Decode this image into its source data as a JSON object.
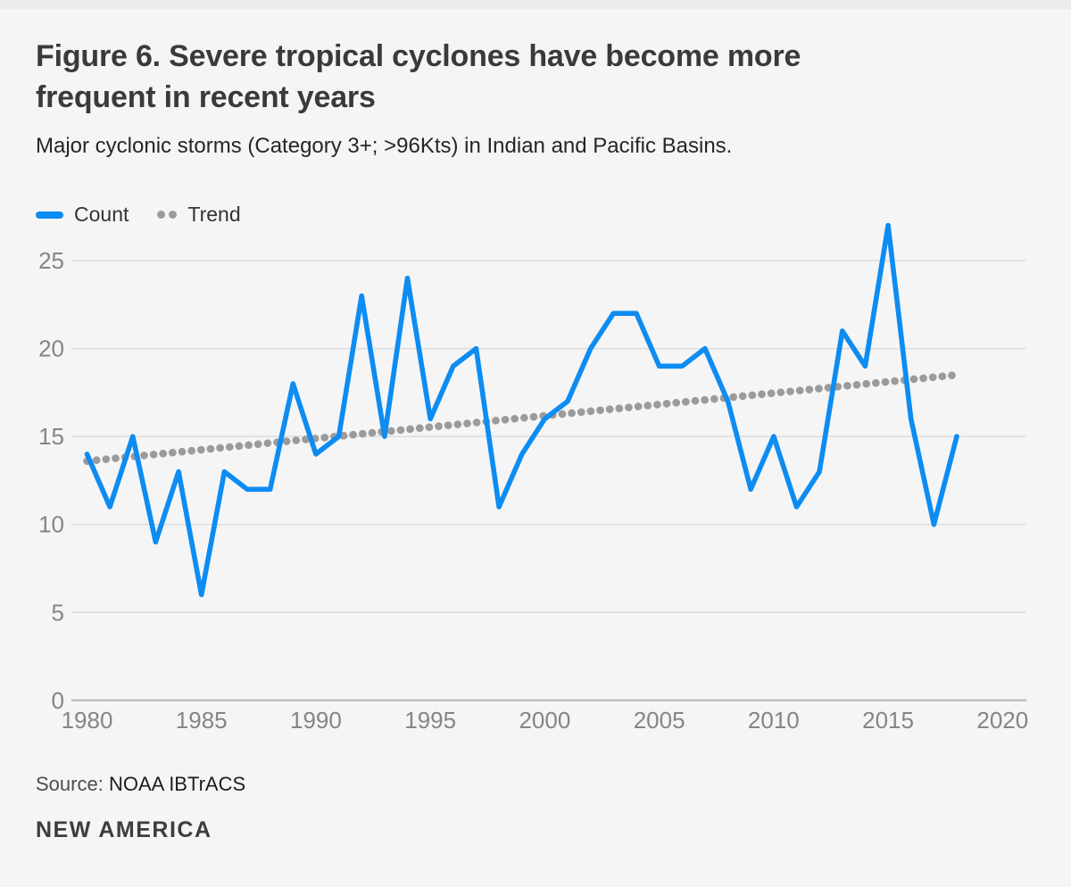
{
  "header": {
    "title_lines": [
      "Figure 6. Severe tropical cyclones have become more",
      "frequent in recent years"
    ],
    "subtitle": "Major cyclonic storms (Category 3+; >96Kts) in Indian and Pacific Basins."
  },
  "legend": {
    "items": [
      {
        "label": "Count",
        "type": "line",
        "color": "#0d8cf2"
      },
      {
        "label": "Trend",
        "type": "dots",
        "color": "#9b9b9b"
      }
    ]
  },
  "chart_data": {
    "type": "line",
    "title": "Figure 6. Severe tropical cyclones have become more frequent in recent years",
    "subtitle": "Major cyclonic storms (Category 3+; >96Kts) in Indian and Pacific Basins.",
    "x": [
      1980,
      1981,
      1982,
      1983,
      1984,
      1985,
      1986,
      1987,
      1988,
      1989,
      1990,
      1991,
      1992,
      1993,
      1994,
      1995,
      1996,
      1997,
      1998,
      1999,
      2000,
      2001,
      2002,
      2003,
      2004,
      2005,
      2006,
      2007,
      2008,
      2009,
      2010,
      2011,
      2012,
      2013,
      2014,
      2015,
      2016,
      2017,
      2018
    ],
    "series": [
      {
        "name": "Count",
        "style": "solid",
        "color": "#0d8cf2",
        "values": [
          14,
          11,
          15,
          9,
          13,
          6,
          13,
          12,
          12,
          18,
          14,
          15,
          23,
          15,
          24,
          16,
          19,
          20,
          11,
          14,
          16,
          17,
          20,
          22,
          22,
          19,
          19,
          20,
          17,
          12,
          15,
          11,
          13,
          21,
          19,
          27,
          16,
          10,
          15
        ]
      },
      {
        "name": "Trend",
        "style": "dotted",
        "color": "#9b9b9b",
        "endpoints": {
          "x": [
            1980,
            2018
          ],
          "y": [
            13.6,
            18.5
          ]
        }
      }
    ],
    "xlabel": "",
    "ylabel": "",
    "xticks": [
      1980,
      1985,
      1990,
      1995,
      2000,
      2005,
      2010,
      2015,
      2020
    ],
    "yticks": [
      0,
      5,
      10,
      15,
      20,
      25
    ],
    "xlim": [
      1979.2,
      2021
    ],
    "ylim": [
      0,
      27.5
    ],
    "grid": "horizontal",
    "legend_position": "top-left",
    "axis_color": "#b3b3b3",
    "gridline_color": "#dddddd",
    "tick_label_color": "#858585"
  },
  "footer": {
    "source_label": "Source:",
    "source_value": "NOAA IBTrACS",
    "brand": "NEW AMERICA"
  }
}
